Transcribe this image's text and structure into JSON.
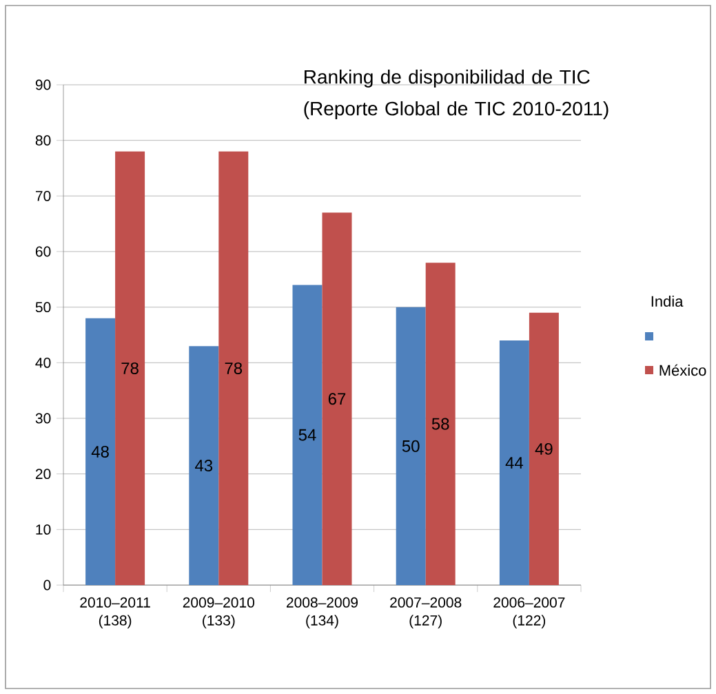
{
  "chart_data": {
    "type": "bar",
    "title": "Ranking de disponibilidad de TIC (Reporte Global de TIC 2010-2011)",
    "categories": [
      "2010–2011 (138)",
      "2009–2010 (133)",
      "2008–2009 (134)",
      "2007–2008 (127)",
      "2006–2007 (122)"
    ],
    "series": [
      {
        "color": "#4f81bd",
        "values": [
          48,
          43,
          54,
          50,
          44
        ]
      },
      {
        "name": "México",
        "color": "#c0504d",
        "values": [
          78,
          78,
          67,
          58,
          49
        ]
      }
    ],
    "ylim": [
      0,
      90
    ],
    "yticks": [
      0,
      10,
      20,
      30,
      40,
      50,
      60,
      70,
      80,
      90
    ],
    "grid": "y",
    "legend": "right",
    "legend_title": "India",
    "data_labels": true
  }
}
